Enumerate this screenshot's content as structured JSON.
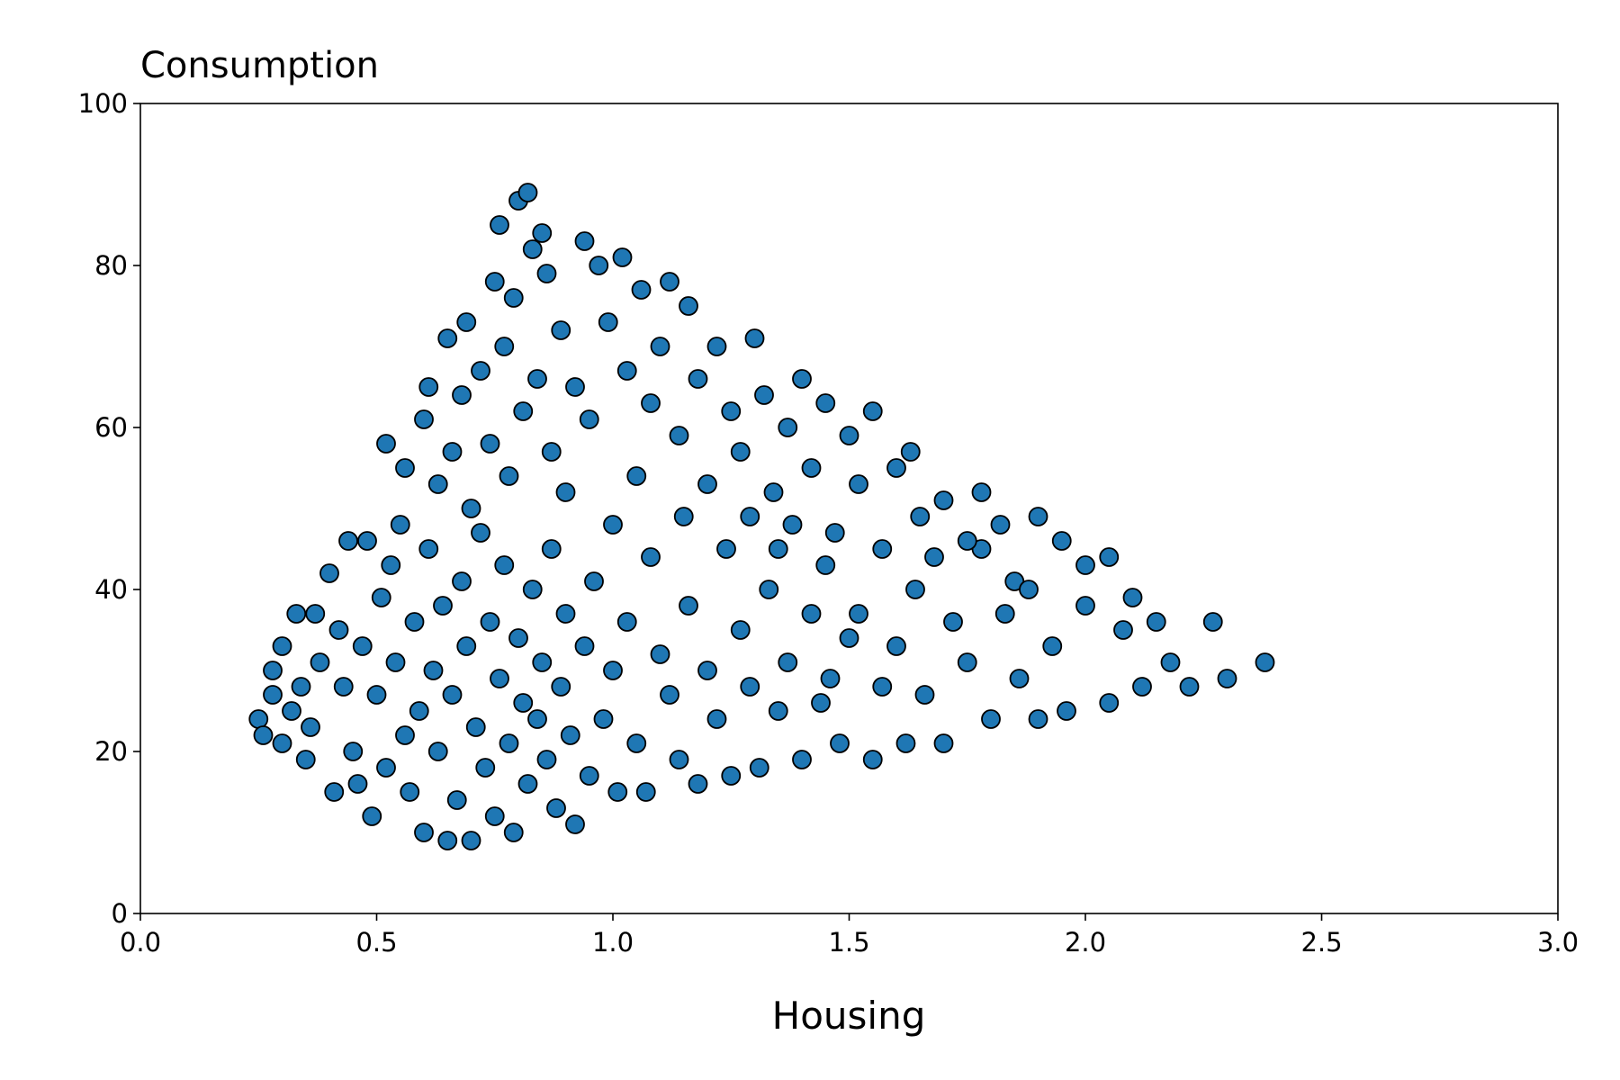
{
  "chart_data": {
    "type": "scatter",
    "title": "Consumption",
    "xlabel": "Housing",
    "color": "#1f77b4",
    "edgecolor": "#000000",
    "xlim": [
      0,
      3
    ],
    "ylim": [
      0,
      100
    ],
    "xticks": [
      {
        "value": 0,
        "label": "0.0"
      },
      0.5,
      {
        "value": 1,
        "label": "1.0"
      },
      1.5,
      {
        "value": 2,
        "label": "2.0"
      },
      2.5,
      {
        "value": 3,
        "label": "3.0"
      }
    ],
    "yticks": [
      0,
      20,
      40,
      60,
      80,
      100
    ],
    "x": [
      0.25,
      0.26,
      0.28,
      0.28,
      0.3,
      0.3,
      0.32,
      0.33,
      0.34,
      0.35,
      0.36,
      0.37,
      0.38,
      0.4,
      0.41,
      0.42,
      0.43,
      0.44,
      0.45,
      0.46,
      0.47,
      0.48,
      0.49,
      0.5,
      0.51,
      0.52,
      0.53,
      0.54,
      0.55,
      0.56,
      0.57,
      0.58,
      0.59,
      0.6,
      0.61,
      0.62,
      0.63,
      0.64,
      0.65,
      0.66,
      0.67,
      0.68,
      0.69,
      0.7,
      0.71,
      0.72,
      0.73,
      0.74,
      0.75,
      0.76,
      0.77,
      0.78,
      0.79,
      0.8,
      0.81,
      0.82,
      0.83,
      0.84,
      0.85,
      0.86,
      0.87,
      0.88,
      0.89,
      0.9,
      0.91,
      0.92,
      0.94,
      0.95,
      0.96,
      0.98,
      1.0,
      1.01,
      1.03,
      1.05,
      1.07,
      1.08,
      1.1,
      1.12,
      1.14,
      1.16,
      1.18,
      1.2,
      1.22,
      1.24,
      1.25,
      1.27,
      1.29,
      1.31,
      1.33,
      1.35,
      1.37,
      1.4,
      1.42,
      1.44,
      1.46,
      1.48,
      1.5,
      1.52,
      1.55,
      1.57,
      1.6,
      1.62,
      1.64,
      1.66,
      1.7,
      1.72,
      1.75,
      1.78,
      1.8,
      1.83,
      1.86,
      1.9,
      1.93,
      1.96,
      2.0,
      2.05,
      2.08,
      2.12,
      2.15,
      2.18,
      2.22,
      2.27,
      2.3,
      2.38,
      0.52,
      0.56,
      0.6,
      0.61,
      0.63,
      0.65,
      0.66,
      0.68,
      0.69,
      0.7,
      0.72,
      0.74,
      0.75,
      0.76,
      0.77,
      0.78,
      0.79,
      0.8,
      0.81,
      0.82,
      0.83,
      0.84,
      0.85,
      0.86,
      0.87,
      0.89,
      0.9,
      0.92,
      0.94,
      0.95,
      0.97,
      0.99,
      1.0,
      1.02,
      1.03,
      1.05,
      1.06,
      1.08,
      1.1,
      1.12,
      1.14,
      1.16,
      1.18,
      1.2,
      1.22,
      1.25,
      1.27,
      1.29,
      1.3,
      1.32,
      1.34,
      1.37,
      1.4,
      1.42,
      1.45,
      1.47,
      1.5,
      1.52,
      1.55,
      1.57,
      1.6,
      1.63,
      1.65,
      1.7,
      1.75,
      1.78,
      1.82,
      1.85,
      1.9,
      1.95,
      2.0,
      2.05,
      2.1,
      1.45,
      1.38,
      1.15,
      1.35,
      1.68,
      1.88
    ],
    "y": [
      24,
      22,
      30,
      27,
      21,
      33,
      25,
      37,
      28,
      19,
      23,
      37,
      31,
      42,
      15,
      35,
      28,
      46,
      20,
      16,
      33,
      46,
      12,
      27,
      39,
      18,
      43,
      31,
      48,
      22,
      15,
      36,
      25,
      10,
      45,
      30,
      20,
      38,
      9,
      27,
      14,
      41,
      33,
      9,
      23,
      47,
      18,
      36,
      12,
      29,
      43,
      21,
      10,
      34,
      26,
      16,
      40,
      24,
      31,
      19,
      45,
      13,
      28,
      37,
      22,
      11,
      33,
      17,
      41,
      24,
      30,
      15,
      36,
      21,
      15,
      44,
      32,
      27,
      19,
      38,
      16,
      30,
      24,
      45,
      17,
      35,
      28,
      18,
      40,
      25,
      31,
      19,
      37,
      26,
      29,
      21,
      34,
      37,
      19,
      28,
      33,
      21,
      40,
      27,
      21,
      36,
      31,
      45,
      24,
      37,
      29,
      24,
      33,
      25,
      38,
      26,
      35,
      28,
      36,
      31,
      28,
      36,
      29,
      31,
      58,
      55,
      61,
      65,
      53,
      71,
      57,
      64,
      73,
      50,
      67,
      58,
      78,
      85,
      70,
      54,
      76,
      88,
      62,
      89,
      82,
      66,
      84,
      79,
      57,
      72,
      52,
      65,
      83,
      61,
      80,
      73,
      48,
      81,
      67,
      54,
      77,
      63,
      70,
      78,
      59,
      75,
      66,
      53,
      70,
      62,
      57,
      49,
      71,
      64,
      52,
      60,
      66,
      55,
      63,
      47,
      59,
      53,
      62,
      45,
      55,
      57,
      49,
      51,
      46,
      52,
      48,
      41,
      49,
      46,
      43,
      44,
      39,
      43,
      48,
      49,
      45,
      44,
      40
    ]
  }
}
